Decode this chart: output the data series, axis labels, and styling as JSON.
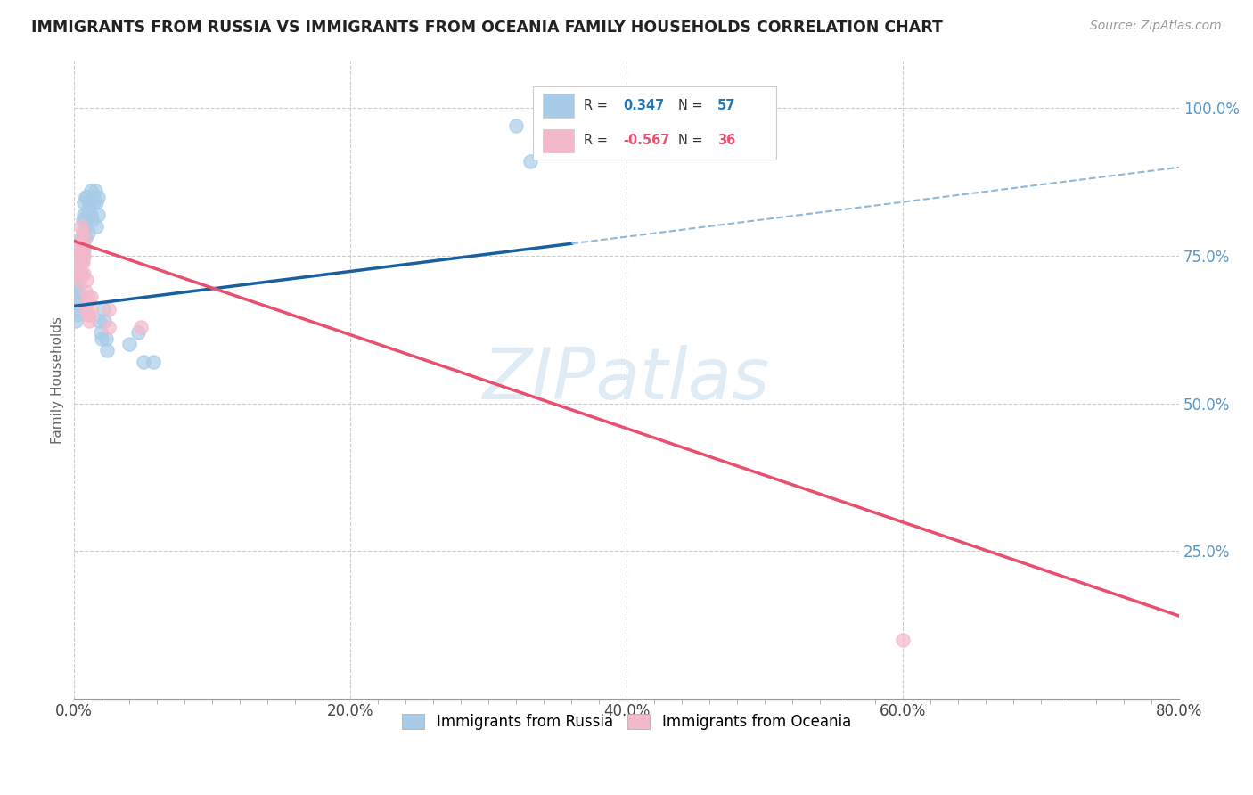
{
  "title": "IMMIGRANTS FROM RUSSIA VS IMMIGRANTS FROM OCEANIA FAMILY HOUSEHOLDS CORRELATION CHART",
  "source": "Source: ZipAtlas.com",
  "ylabel": "Family Households",
  "xlim": [
    0.0,
    0.8
  ],
  "ylim": [
    0.0,
    1.08
  ],
  "xtick_labels": [
    "0.0%",
    "",
    "",
    "",
    "",
    "",
    "",
    "",
    "",
    "",
    "20.0%",
    "",
    "",
    "",
    "",
    "",
    "",
    "",
    "",
    "",
    "40.0%",
    "",
    "",
    "",
    "",
    "",
    "",
    "",
    "",
    "",
    "60.0%",
    "",
    "",
    "",
    "",
    "",
    "",
    "",
    "",
    "",
    "80.0%"
  ],
  "xtick_values": [
    0.0,
    0.02,
    0.04,
    0.06,
    0.08,
    0.1,
    0.12,
    0.14,
    0.16,
    0.18,
    0.2,
    0.22,
    0.24,
    0.26,
    0.28,
    0.3,
    0.32,
    0.34,
    0.36,
    0.38,
    0.4,
    0.42,
    0.44,
    0.46,
    0.48,
    0.5,
    0.52,
    0.54,
    0.56,
    0.58,
    0.6,
    0.62,
    0.64,
    0.66,
    0.68,
    0.7,
    0.72,
    0.74,
    0.76,
    0.78,
    0.8
  ],
  "ytick_labels": [
    "25.0%",
    "50.0%",
    "75.0%",
    "100.0%"
  ],
  "ytick_values": [
    0.25,
    0.5,
    0.75,
    1.0
  ],
  "russia_color": "#a8cce8",
  "oceania_color": "#f4b8cb",
  "russia_line_color": "#1a5fa0",
  "oceania_line_color": "#e85070",
  "dash_color": "#90b8d8",
  "watermark_text": "ZIPatlas",
  "russia_R": "0.347",
  "russia_N": "57",
  "oceania_R": "-0.567",
  "oceania_N": "36",
  "legend_label_russia": "Immigrants from Russia",
  "legend_label_oceania": "Immigrants from Oceania",
  "russia_scatter": [
    [
      0.001,
      0.64
    ],
    [
      0.001,
      0.66
    ],
    [
      0.001,
      0.68
    ],
    [
      0.002,
      0.65
    ],
    [
      0.002,
      0.7
    ],
    [
      0.002,
      0.71
    ],
    [
      0.003,
      0.69
    ],
    [
      0.003,
      0.72
    ],
    [
      0.003,
      0.67
    ],
    [
      0.003,
      0.73
    ],
    [
      0.004,
      0.68
    ],
    [
      0.004,
      0.75
    ],
    [
      0.004,
      0.72
    ],
    [
      0.004,
      0.76
    ],
    [
      0.005,
      0.74
    ],
    [
      0.005,
      0.78
    ],
    [
      0.005,
      0.76
    ],
    [
      0.005,
      0.72
    ],
    [
      0.006,
      0.79
    ],
    [
      0.006,
      0.75
    ],
    [
      0.006,
      0.81
    ],
    [
      0.006,
      0.77
    ],
    [
      0.007,
      0.79
    ],
    [
      0.007,
      0.82
    ],
    [
      0.007,
      0.76
    ],
    [
      0.007,
      0.84
    ],
    [
      0.008,
      0.85
    ],
    [
      0.008,
      0.81
    ],
    [
      0.008,
      0.78
    ],
    [
      0.009,
      0.82
    ],
    [
      0.009,
      0.85
    ],
    [
      0.01,
      0.83
    ],
    [
      0.01,
      0.79
    ],
    [
      0.011,
      0.84
    ],
    [
      0.012,
      0.86
    ],
    [
      0.012,
      0.82
    ],
    [
      0.013,
      0.85
    ],
    [
      0.013,
      0.81
    ],
    [
      0.014,
      0.84
    ],
    [
      0.015,
      0.86
    ],
    [
      0.016,
      0.84
    ],
    [
      0.016,
      0.8
    ],
    [
      0.017,
      0.85
    ],
    [
      0.017,
      0.82
    ],
    [
      0.018,
      0.64
    ],
    [
      0.019,
      0.62
    ],
    [
      0.02,
      0.61
    ],
    [
      0.021,
      0.66
    ],
    [
      0.022,
      0.64
    ],
    [
      0.023,
      0.61
    ],
    [
      0.024,
      0.59
    ],
    [
      0.04,
      0.6
    ],
    [
      0.046,
      0.62
    ],
    [
      0.05,
      0.57
    ],
    [
      0.057,
      0.57
    ],
    [
      0.32,
      0.97
    ],
    [
      0.33,
      0.91
    ]
  ],
  "oceania_scatter": [
    [
      0.001,
      0.76
    ],
    [
      0.001,
      0.74
    ],
    [
      0.002,
      0.75
    ],
    [
      0.002,
      0.73
    ],
    [
      0.002,
      0.77
    ],
    [
      0.003,
      0.72
    ],
    [
      0.003,
      0.75
    ],
    [
      0.003,
      0.77
    ],
    [
      0.004,
      0.73
    ],
    [
      0.004,
      0.75
    ],
    [
      0.004,
      0.71
    ],
    [
      0.004,
      0.77
    ],
    [
      0.005,
      0.74
    ],
    [
      0.005,
      0.77
    ],
    [
      0.005,
      0.8
    ],
    [
      0.005,
      0.72
    ],
    [
      0.006,
      0.76
    ],
    [
      0.006,
      0.79
    ],
    [
      0.006,
      0.74
    ],
    [
      0.007,
      0.75
    ],
    [
      0.007,
      0.78
    ],
    [
      0.007,
      0.72
    ],
    [
      0.008,
      0.66
    ],
    [
      0.008,
      0.69
    ],
    [
      0.009,
      0.71
    ],
    [
      0.009,
      0.67
    ],
    [
      0.01,
      0.68
    ],
    [
      0.01,
      0.65
    ],
    [
      0.011,
      0.65
    ],
    [
      0.011,
      0.64
    ],
    [
      0.012,
      0.66
    ],
    [
      0.012,
      0.68
    ],
    [
      0.025,
      0.63
    ],
    [
      0.025,
      0.66
    ],
    [
      0.048,
      0.63
    ],
    [
      0.6,
      0.1
    ]
  ]
}
